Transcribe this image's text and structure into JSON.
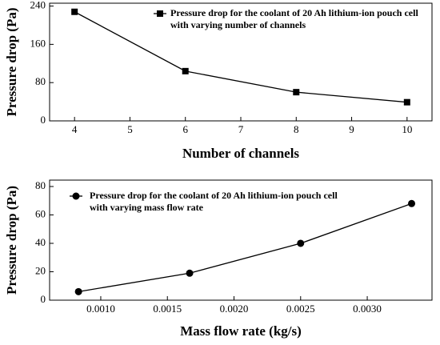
{
  "chart_data": [
    {
      "type": "line",
      "xlabel": "Number of channels",
      "ylabel": "Pressure drop (Pa)",
      "x": [
        4,
        6,
        8,
        10
      ],
      "series": [
        {
          "name": "Pressure drop for the coolant of 20 Ah lithium-ion pouch cell with varying number of channels",
          "color": "#000000",
          "marker": "square",
          "values": [
            228,
            104,
            60,
            39
          ]
        }
      ],
      "xlim": [
        3.55,
        10.45
      ],
      "ylim": [
        0,
        246
      ],
      "xticks": [
        4,
        5,
        6,
        7,
        8,
        9,
        10
      ],
      "yticks": [
        0,
        80,
        160,
        240
      ]
    },
    {
      "type": "line",
      "xlabel": "Mass flow rate (kg/s)",
      "ylabel": "Pressure drop (Pa)",
      "x": [
        0.000833,
        0.001667,
        0.0025,
        0.003333
      ],
      "series": [
        {
          "name": "Pressure drop for the coolant of 20 Ah lithium-ion pouch cell with varying mass flow rate",
          "color": "#000000",
          "marker": "circle",
          "values": [
            6,
            19,
            40,
            68
          ]
        }
      ],
      "xlim": [
        0.000616,
        0.003486
      ],
      "ylim": [
        0,
        84.5
      ],
      "xticks": [
        {
          "value": 0.001,
          "label": "0.0010"
        },
        {
          "value": 0.0015,
          "label": "0.0015"
        },
        {
          "value": 0.002,
          "label": "0.0020"
        },
        {
          "value": 0.0025,
          "label": "0.0025"
        },
        {
          "value": 0.003,
          "label": "0.0030"
        }
      ],
      "yticks": [
        0,
        20,
        40,
        60,
        80
      ]
    }
  ]
}
